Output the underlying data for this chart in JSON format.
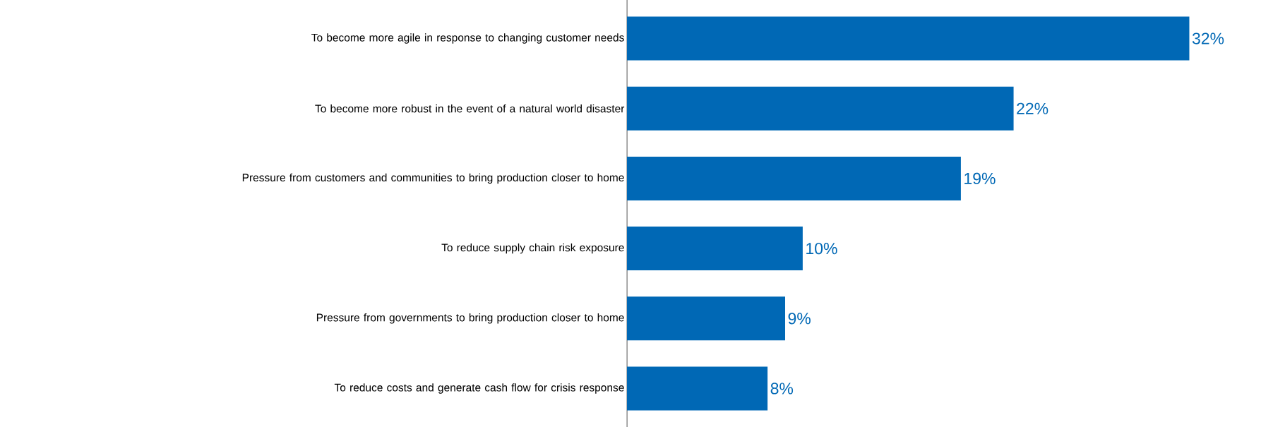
{
  "chart_data": {
    "type": "bar",
    "orientation": "horizontal",
    "categories": [
      "To become more agile in response to changing customer needs",
      "To become more robust in the event of a natural world disaster",
      "Pressure from customers and communities to bring production closer to home",
      "To reduce supply chain risk exposure",
      "Pressure from governments to bring production closer to home",
      "To reduce costs and generate cash flow for crisis response"
    ],
    "values": [
      32,
      22,
      19,
      10,
      9,
      8
    ],
    "value_labels": [
      "32%",
      "22%",
      "19%",
      "10%",
      "9%",
      "8%"
    ],
    "color": "#0068b5"
  }
}
